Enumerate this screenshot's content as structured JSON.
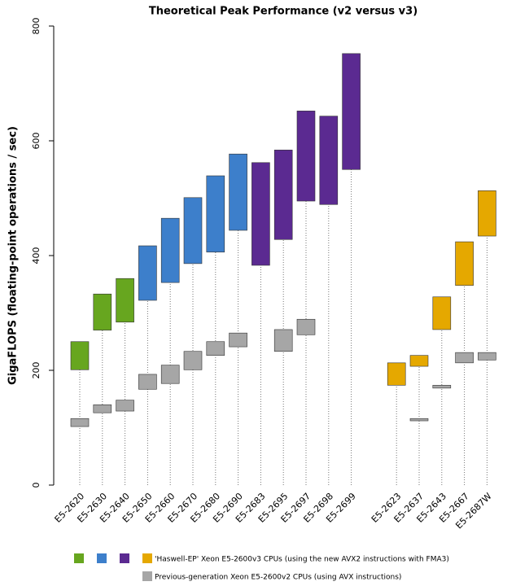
{
  "chart_data": {
    "type": "floating-bar",
    "title": "Theoretical Peak Performance (v2 versus v3)",
    "y_label": "GigaFLOPS (floating-point operations / sec)",
    "categories": [
      "E5-2620",
      "E5-2630",
      "E5-2640",
      "E5-2650",
      "E5-2660",
      "E5-2670",
      "E5-2680",
      "E5-2690",
      "E5-2683",
      "E5-2695",
      "E5-2697",
      "E5-2698",
      "E5-2699",
      null,
      "E5-2623",
      "E5-2637",
      "E5-2643",
      "E5-2667",
      "E5-2687W"
    ],
    "series": [
      {
        "name": "'Haswell-EP' Xeon E5-2600v3 CPUs (using the new AVX2 instructions with FMA3)",
        "colors": [
          "#67a61f",
          "#67a61f",
          "#67a61f",
          "#3d7fcb",
          "#3d7fcb",
          "#3d7fcb",
          "#3d7fcb",
          "#3d7fcb",
          "#5b2a91",
          "#5b2a91",
          "#5b2a91",
          "#5b2a91",
          "#5b2a91",
          null,
          "#e5a800",
          "#e5a800",
          "#e5a800",
          "#e5a800",
          "#e5a800"
        ],
        "low": [
          201,
          270,
          284,
          322,
          353,
          386,
          406,
          444,
          383,
          428,
          495,
          489,
          550,
          null,
          174,
          207,
          271,
          348,
          434
        ],
        "high": [
          250,
          333,
          360,
          417,
          465,
          501,
          539,
          577,
          562,
          584,
          652,
          643,
          752,
          null,
          213,
          226,
          328,
          424,
          513
        ]
      },
      {
        "name": "Previous-generation Xeon E5-2600v2 CPUs (using AVX instructions)",
        "color": "#a6a6a6",
        "low": [
          102,
          126,
          129,
          167,
          177,
          201,
          226,
          241,
          null,
          233,
          262,
          null,
          null,
          null,
          null,
          112,
          169,
          213,
          218
        ],
        "high": [
          116,
          140,
          148,
          193,
          209,
          233,
          250,
          265,
          null,
          271,
          289,
          null,
          null,
          null,
          null,
          116,
          174,
          231,
          231
        ]
      }
    ],
    "ylim": [
      0,
      800
    ],
    "yticks": [
      0,
      200,
      400,
      600,
      800
    ]
  }
}
